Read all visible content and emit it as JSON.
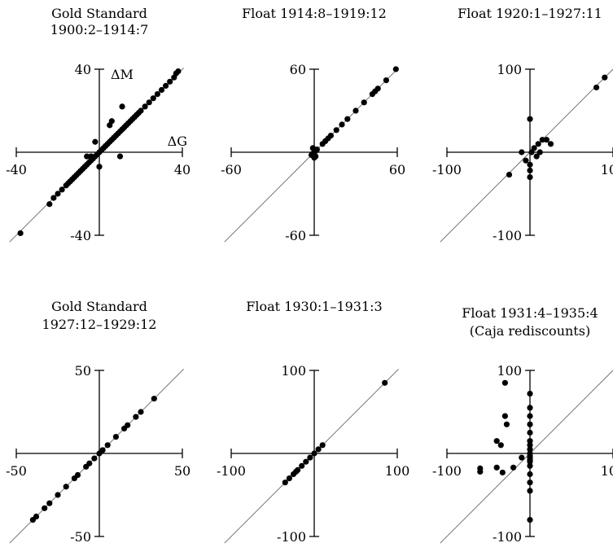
{
  "chart_data": [
    {
      "type": "scatter",
      "title": [
        "Gold Standard",
        "1900:2–1914:7"
      ],
      "xlabel": "ΔG",
      "ylabel": "ΔM",
      "xlim": [
        -40,
        40
      ],
      "ylim": [
        -40,
        40
      ],
      "x_ticks": [
        "-40",
        "40"
      ],
      "y_ticks": [
        "40",
        "-40"
      ],
      "diagonal": [
        [
          -40,
          -40
        ],
        [
          40,
          40
        ]
      ],
      "points": [
        [
          -38,
          -39
        ],
        [
          -24,
          -25
        ],
        [
          -22,
          -22
        ],
        [
          -20,
          -20
        ],
        [
          -18,
          -18
        ],
        [
          -16,
          -16
        ],
        [
          -15,
          -15
        ],
        [
          -14,
          -14
        ],
        [
          -13,
          -13
        ],
        [
          -12,
          -12
        ],
        [
          -11,
          -11
        ],
        [
          -10,
          -10
        ],
        [
          -9,
          -9
        ],
        [
          -8,
          -8
        ],
        [
          -7,
          -7
        ],
        [
          -6,
          -6
        ],
        [
          -5,
          -5
        ],
        [
          -4,
          -4
        ],
        [
          -3,
          -3
        ],
        [
          -2,
          -2
        ],
        [
          -1,
          -1
        ],
        [
          0,
          0
        ],
        [
          1,
          1
        ],
        [
          2,
          2
        ],
        [
          3,
          3
        ],
        [
          4,
          4
        ],
        [
          5,
          5
        ],
        [
          6,
          6
        ],
        [
          7,
          7
        ],
        [
          8,
          8
        ],
        [
          9,
          9
        ],
        [
          10,
          10
        ],
        [
          11,
          11
        ],
        [
          12,
          12
        ],
        [
          13,
          13
        ],
        [
          14,
          14
        ],
        [
          15,
          15
        ],
        [
          16,
          16
        ],
        [
          17,
          17
        ],
        [
          18,
          18
        ],
        [
          19,
          19
        ],
        [
          20,
          20
        ],
        [
          22,
          22
        ],
        [
          24,
          24
        ],
        [
          26,
          26
        ],
        [
          28,
          28
        ],
        [
          30,
          30
        ],
        [
          32,
          32
        ],
        [
          34,
          34
        ],
        [
          36,
          36
        ],
        [
          37,
          38
        ],
        [
          38,
          39
        ],
        [
          11,
          22
        ],
        [
          6,
          15
        ],
        [
          -4,
          -2
        ],
        [
          -6,
          -2
        ],
        [
          10,
          -2
        ],
        [
          -2,
          5
        ],
        [
          0,
          -7
        ],
        [
          5,
          13
        ]
      ]
    },
    {
      "type": "scatter",
      "title": [
        "Float 1914:8–1919:12"
      ],
      "xlabel": "",
      "ylabel": "",
      "xlim": [
        -60,
        60
      ],
      "ylim": [
        -60,
        60
      ],
      "x_ticks": [
        "-60",
        "60"
      ],
      "y_ticks": [
        "60",
        "-60"
      ],
      "diagonal": [
        [
          -60,
          -60
        ],
        [
          60,
          60
        ]
      ],
      "points": [
        [
          -2,
          -2
        ],
        [
          -1,
          -1
        ],
        [
          0,
          0
        ],
        [
          1,
          1
        ],
        [
          2,
          2
        ],
        [
          0,
          -4
        ],
        [
          -1,
          3
        ],
        [
          1,
          -3
        ],
        [
          6,
          6
        ],
        [
          8,
          8
        ],
        [
          10,
          10
        ],
        [
          12,
          12
        ],
        [
          16,
          16
        ],
        [
          20,
          20
        ],
        [
          24,
          24
        ],
        [
          30,
          30
        ],
        [
          36,
          36
        ],
        [
          42,
          42
        ],
        [
          44,
          44
        ],
        [
          46,
          46
        ],
        [
          52,
          52
        ],
        [
          59,
          60
        ]
      ]
    },
    {
      "type": "scatter",
      "title": [
        "Float 1920:1–1927:11"
      ],
      "xlabel": "",
      "ylabel": "",
      "xlim": [
        -100,
        100
      ],
      "ylim": [
        -100,
        100
      ],
      "x_ticks": [
        "-100",
        "100"
      ],
      "y_ticks": [
        "100",
        "-100"
      ],
      "diagonal": [
        [
          -100,
          -100
        ],
        [
          100,
          100
        ]
      ],
      "points": [
        [
          0,
          40
        ],
        [
          20,
          15
        ],
        [
          25,
          10
        ],
        [
          12,
          0
        ],
        [
          2,
          0
        ],
        [
          -10,
          0
        ],
        [
          0,
          -22
        ],
        [
          -25,
          -27
        ],
        [
          0,
          -30
        ],
        [
          0,
          -15
        ],
        [
          5,
          5
        ],
        [
          10,
          10
        ],
        [
          15,
          15
        ],
        [
          80,
          78
        ],
        [
          90,
          90
        ],
        [
          -5,
          -10
        ],
        [
          8,
          -5
        ]
      ]
    },
    {
      "type": "scatter",
      "title": [
        "Gold Standard",
        "1927:12–1929:12"
      ],
      "xlabel": "",
      "ylabel": "",
      "xlim": [
        -50,
        50
      ],
      "ylim": [
        -50,
        50
      ],
      "x_ticks": [
        "-50",
        "50"
      ],
      "y_ticks": [
        "50",
        "-50"
      ],
      "diagonal": [
        [
          -50,
          -50
        ],
        [
          50,
          50
        ]
      ],
      "points": [
        [
          -40,
          -40
        ],
        [
          -38,
          -38
        ],
        [
          -33,
          -33
        ],
        [
          -30,
          -30
        ],
        [
          -25,
          -25
        ],
        [
          -20,
          -20
        ],
        [
          -15,
          -15
        ],
        [
          -13,
          -13
        ],
        [
          -8,
          -8
        ],
        [
          -6,
          -6
        ],
        [
          -3,
          -3
        ],
        [
          0,
          0
        ],
        [
          2,
          2
        ],
        [
          5,
          5
        ],
        [
          10,
          10
        ],
        [
          15,
          15
        ],
        [
          17,
          17
        ],
        [
          22,
          22
        ],
        [
          25,
          25
        ],
        [
          33,
          33
        ]
      ]
    },
    {
      "type": "scatter",
      "title": [
        "Float 1930:1–1931:3"
      ],
      "xlabel": "",
      "ylabel": "",
      "xlim": [
        -100,
        100
      ],
      "ylim": [
        -100,
        100
      ],
      "x_ticks": [
        "-100",
        "100"
      ],
      "y_ticks": [
        "100",
        "-100"
      ],
      "diagonal": [
        [
          -100,
          -100
        ],
        [
          100,
          100
        ]
      ],
      "points": [
        [
          -35,
          -35
        ],
        [
          -30,
          -30
        ],
        [
          -25,
          -25
        ],
        [
          -22,
          -22
        ],
        [
          -20,
          -20
        ],
        [
          -15,
          -15
        ],
        [
          -10,
          -10
        ],
        [
          -5,
          -5
        ],
        [
          0,
          0
        ],
        [
          5,
          5
        ],
        [
          10,
          10
        ],
        [
          85,
          85
        ]
      ]
    },
    {
      "type": "scatter",
      "title": [
        "Float 1931:4–1935:4",
        "(Caja rediscounts)"
      ],
      "xlabel": "",
      "ylabel": "",
      "xlim": [
        -100,
        100
      ],
      "ylim": [
        -100,
        100
      ],
      "x_ticks": [
        "-100",
        "100"
      ],
      "y_ticks": [
        "100",
        "-100"
      ],
      "diagonal": [
        [
          -100,
          -100
        ],
        [
          100,
          100
        ]
      ],
      "points": [
        [
          -30,
          85
        ],
        [
          -30,
          45
        ],
        [
          -28,
          35
        ],
        [
          -40,
          15
        ],
        [
          -35,
          10
        ],
        [
          -60,
          -18
        ],
        [
          -60,
          -22
        ],
        [
          -40,
          -17
        ],
        [
          -33,
          -23
        ],
        [
          -20,
          -17
        ],
        [
          -10,
          -5
        ],
        [
          0,
          -5
        ],
        [
          0,
          0
        ],
        [
          0,
          5
        ],
        [
          0,
          10
        ],
        [
          0,
          15
        ],
        [
          0,
          25
        ],
        [
          0,
          35
        ],
        [
          0,
          45
        ],
        [
          0,
          55
        ],
        [
          0,
          72
        ],
        [
          0,
          -10
        ],
        [
          0,
          -15
        ],
        [
          0,
          -25
        ],
        [
          0,
          -35
        ],
        [
          0,
          -45
        ],
        [
          0,
          -80
        ],
        [
          0,
          -8
        ],
        [
          0,
          -3
        ]
      ]
    }
  ]
}
